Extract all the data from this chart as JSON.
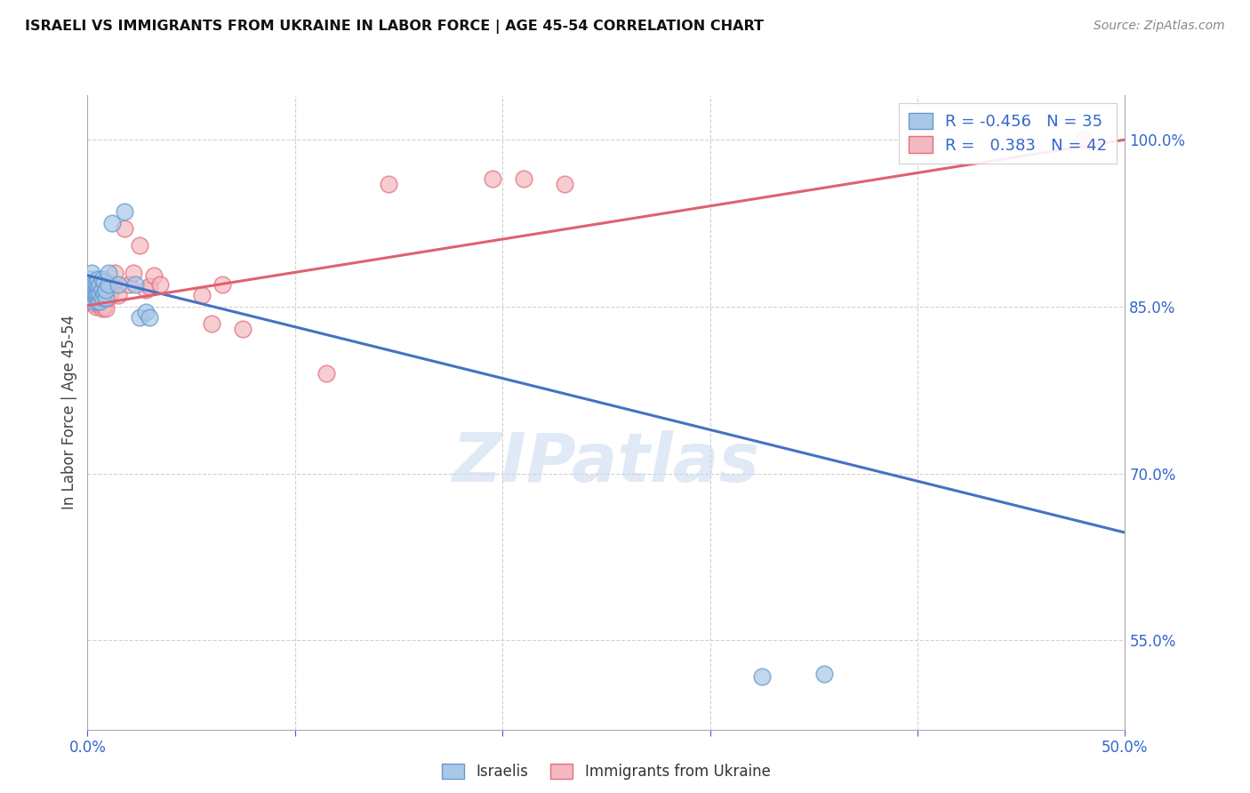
{
  "title": "ISRAELI VS IMMIGRANTS FROM UKRAINE IN LABOR FORCE | AGE 45-54 CORRELATION CHART",
  "source": "Source: ZipAtlas.com",
  "ylabel": "In Labor Force | Age 45-54",
  "xlim": [
    0.0,
    0.5
  ],
  "ylim": [
    0.47,
    1.04
  ],
  "xticks": [
    0.0,
    0.1,
    0.2,
    0.3,
    0.4,
    0.5
  ],
  "xtick_labels": [
    "0.0%",
    "",
    "",
    "",
    "",
    "50.0%"
  ],
  "yticks": [
    0.55,
    0.7,
    0.85,
    1.0
  ],
  "ytick_labels": [
    "55.0%",
    "70.0%",
    "85.0%",
    "100.0%"
  ],
  "legend_r_blue": "-0.456",
  "legend_n_blue": "35",
  "legend_r_pink": "0.383",
  "legend_n_pink": "42",
  "blue_color": "#a8c8e8",
  "pink_color": "#f4b8c0",
  "blue_edge_color": "#6699cc",
  "pink_edge_color": "#e07080",
  "blue_line_color": "#4472c4",
  "pink_line_color": "#e06070",
  "watermark_color": "#c8d8f0",
  "grid_color": "#cccccc",
  "blue_x": [
    0.001,
    0.001,
    0.002,
    0.002,
    0.003,
    0.003,
    0.003,
    0.004,
    0.004,
    0.004,
    0.005,
    0.005,
    0.005,
    0.005,
    0.006,
    0.006,
    0.006,
    0.007,
    0.007,
    0.007,
    0.008,
    0.008,
    0.009,
    0.009,
    0.01,
    0.01,
    0.012,
    0.015,
    0.018,
    0.023,
    0.025,
    0.028,
    0.03,
    0.325,
    0.355
  ],
  "blue_y": [
    0.87,
    0.875,
    0.865,
    0.88,
    0.855,
    0.862,
    0.87,
    0.858,
    0.862,
    0.87,
    0.855,
    0.862,
    0.868,
    0.875,
    0.855,
    0.862,
    0.87,
    0.858,
    0.865,
    0.875,
    0.862,
    0.872,
    0.858,
    0.865,
    0.87,
    0.88,
    0.925,
    0.87,
    0.935,
    0.87,
    0.84,
    0.845,
    0.84,
    0.518,
    0.52
  ],
  "pink_x": [
    0.001,
    0.001,
    0.002,
    0.002,
    0.003,
    0.003,
    0.004,
    0.004,
    0.005,
    0.005,
    0.006,
    0.006,
    0.007,
    0.007,
    0.008,
    0.008,
    0.009,
    0.009,
    0.01,
    0.01,
    0.011,
    0.012,
    0.013,
    0.015,
    0.018,
    0.02,
    0.022,
    0.025,
    0.028,
    0.03,
    0.032,
    0.035,
    0.055,
    0.06,
    0.065,
    0.075,
    0.115,
    0.145,
    0.195,
    0.21,
    0.23,
    0.48
  ],
  "pink_y": [
    0.862,
    0.87,
    0.858,
    0.868,
    0.852,
    0.862,
    0.85,
    0.86,
    0.852,
    0.862,
    0.852,
    0.86,
    0.848,
    0.858,
    0.85,
    0.86,
    0.848,
    0.858,
    0.858,
    0.865,
    0.862,
    0.87,
    0.88,
    0.86,
    0.92,
    0.87,
    0.88,
    0.905,
    0.865,
    0.868,
    0.878,
    0.87,
    0.86,
    0.835,
    0.87,
    0.83,
    0.79,
    0.96,
    0.965,
    0.965,
    0.96,
    1.0
  ],
  "blue_trend_x": [
    0.0,
    0.5
  ],
  "blue_trend_y": [
    0.878,
    0.647
  ],
  "pink_trend_x": [
    0.0,
    0.5
  ],
  "pink_trend_y": [
    0.851,
    1.0
  ]
}
